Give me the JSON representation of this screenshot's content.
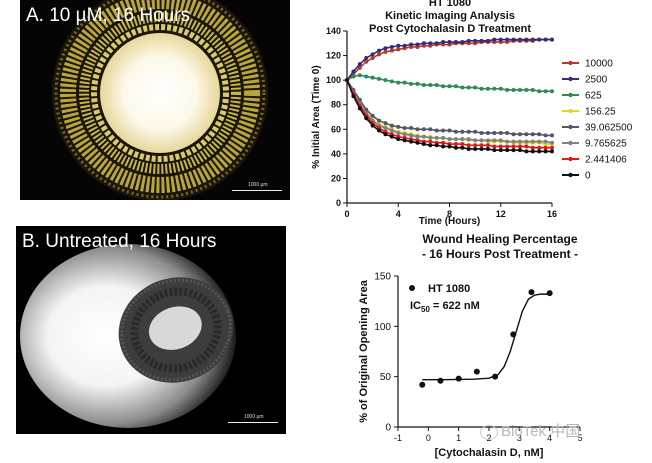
{
  "panelA": {
    "label": "A. 10 µM, 16 Hours",
    "scale": "1000 µm"
  },
  "panelB": {
    "label": "B. Untreated, 16 Hours",
    "scale": "1000 µm"
  },
  "watermark": "BioTek 中国",
  "chart1": {
    "title_lines": [
      "HT 1080",
      "Kinetic Imaging Analysis",
      "Post Cytochalasin D Treatment"
    ],
    "ylabel": "% Initial Area (Time 0)",
    "xlabel": "Time (Hours)",
    "yticks": [
      "0",
      "20",
      "40",
      "60",
      "80",
      "100",
      "120",
      "140"
    ],
    "xticks": [
      "0",
      "4",
      "8",
      "12",
      "16"
    ]
  },
  "chart2": {
    "title_lines": [
      "Wound Healing Percentage",
      "- 16 Hours Post Treatment -"
    ],
    "ylabel": "% of Original Opening Area",
    "xlabel": "[Cytochalasin D, nM]",
    "yticks": [
      "0",
      "50",
      "100",
      "150"
    ],
    "xticks": [
      "-1",
      "0",
      "1",
      "2",
      "3",
      "4",
      "5"
    ],
    "legend_name": "HT 1080",
    "ic50_main": "IC",
    "ic50_sub": "50",
    "ic50_rest": " = 622 nM"
  },
  "chart_data": [
    {
      "type": "line",
      "title": "HT 1080 Kinetic Imaging Analysis Post Cytochalasin D Treatment",
      "xlabel": "Time (Hours)",
      "ylabel": "% Initial Area (Time 0)",
      "xlim": [
        0,
        16
      ],
      "ylim": [
        0,
        140
      ],
      "legend_placement": "right",
      "x": [
        0,
        0.5,
        1,
        1.5,
        2,
        2.5,
        3,
        3.5,
        4,
        4.5,
        5,
        5.5,
        6,
        6.5,
        7,
        7.5,
        8,
        8.5,
        9,
        9.5,
        10,
        10.5,
        11,
        11.5,
        12,
        12.5,
        13,
        13.5,
        14,
        14.5,
        15,
        15.5,
        16
      ],
      "series": [
        {
          "name": "10000",
          "color": "#b33a2a",
          "values": [
            100,
            105,
            110,
            115,
            118,
            121,
            123,
            124,
            125,
            126,
            127,
            127,
            128,
            128,
            129,
            129,
            129,
            130,
            130,
            130,
            130,
            131,
            131,
            131,
            131,
            131,
            132,
            132,
            132,
            132,
            133,
            133,
            133
          ]
        },
        {
          "name": "2500",
          "color": "#3a2a7a",
          "values": [
            100,
            107,
            113,
            118,
            121,
            124,
            126,
            127,
            128,
            128,
            129,
            129,
            130,
            130,
            130,
            131,
            131,
            131,
            131,
            132,
            132,
            132,
            132,
            133,
            133,
            133,
            133,
            133,
            133,
            133,
            133,
            133,
            133
          ]
        },
        {
          "name": "625",
          "color": "#2f8a55",
          "values": [
            100,
            103,
            104,
            103,
            102,
            101,
            100,
            99,
            98,
            98,
            97,
            97,
            96,
            96,
            96,
            95,
            95,
            95,
            94,
            94,
            94,
            93,
            93,
            93,
            93,
            92,
            92,
            92,
            92,
            92,
            91,
            91,
            91
          ]
        },
        {
          "name": "156.25",
          "color": "#e9d425",
          "values": [
            100,
            91,
            82,
            74,
            68,
            64,
            62,
            60,
            58,
            57,
            56,
            55,
            54,
            54,
            53,
            53,
            52,
            52,
            52,
            51,
            51,
            51,
            50,
            50,
            50,
            50,
            49,
            49,
            49,
            49,
            49,
            48,
            48
          ]
        },
        {
          "name": "39.062500",
          "color": "#555566",
          "values": [
            100,
            92,
            84,
            76,
            71,
            67,
            65,
            63,
            62,
            61,
            61,
            60,
            60,
            60,
            59,
            59,
            59,
            58,
            58,
            58,
            58,
            57,
            57,
            57,
            57,
            57,
            56,
            56,
            56,
            56,
            56,
            55,
            55
          ]
        },
        {
          "name": "9.765625",
          "color": "#808080",
          "values": [
            100,
            90,
            81,
            73,
            67,
            63,
            61,
            59,
            57,
            56,
            55,
            54,
            54,
            53,
            53,
            53,
            52,
            52,
            52,
            52,
            51,
            51,
            51,
            51,
            51,
            50,
            50,
            50,
            50,
            50,
            50,
            50,
            49
          ]
        },
        {
          "name": "2.441406",
          "color": "#dd1a1a",
          "values": [
            100,
            89,
            79,
            71,
            65,
            61,
            58,
            56,
            54,
            53,
            52,
            51,
            50,
            50,
            49,
            49,
            48,
            48,
            48,
            47,
            47,
            47,
            47,
            46,
            46,
            46,
            46,
            46,
            46,
            45,
            45,
            45,
            45
          ]
        },
        {
          "name": "0",
          "color": "#111111",
          "values": [
            100,
            87,
            77,
            69,
            63,
            59,
            56,
            54,
            52,
            51,
            50,
            49,
            48,
            47,
            47,
            46,
            46,
            45,
            45,
            44,
            44,
            44,
            44,
            43,
            43,
            43,
            43,
            43,
            42,
            42,
            42,
            42,
            42
          ]
        }
      ]
    },
    {
      "type": "scatter",
      "title": "Wound Healing Percentage - 16 Hours Post Treatment -",
      "xlabel": "[Cytochalasin D, nM]",
      "ylabel": "% of Original Opening Area",
      "xlim": [
        -1,
        5
      ],
      "ylim": [
        0,
        150
      ],
      "series": [
        {
          "name": "HT 1080",
          "points": [
            [
              -0.2,
              42
            ],
            [
              0.4,
              46
            ],
            [
              1.0,
              48
            ],
            [
              1.6,
              55
            ],
            [
              2.2,
              50
            ],
            [
              2.8,
              92
            ],
            [
              3.4,
              134
            ],
            [
              4.0,
              133
            ]
          ]
        },
        {
          "name": "fit",
          "points": [
            [
              -0.2,
              47
            ],
            [
              0.5,
              47
            ],
            [
              1.0,
              47.2
            ],
            [
              1.5,
              47.5
            ],
            [
              2.0,
              48.5
            ],
            [
              2.3,
              52
            ],
            [
              2.5,
              60
            ],
            [
              2.7,
              75
            ],
            [
              2.9,
              95
            ],
            [
              3.1,
              115
            ],
            [
              3.3,
              127
            ],
            [
              3.5,
              131
            ],
            [
              3.7,
              132
            ],
            [
              4.0,
              132
            ]
          ]
        }
      ]
    }
  ]
}
